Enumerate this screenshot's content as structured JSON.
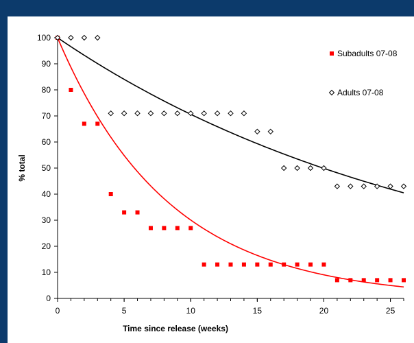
{
  "chart_data": {
    "type": "scatter",
    "title": "",
    "xlabel": "Time since release (weeks)",
    "ylabel": "% total",
    "xlim": [
      0,
      26
    ],
    "ylim": [
      0,
      100
    ],
    "xticks": [
      0,
      5,
      10,
      15,
      20,
      25
    ],
    "yticks": [
      0,
      10,
      20,
      30,
      40,
      50,
      60,
      70,
      80,
      90,
      100
    ],
    "grid": false,
    "legend_position": "top-right",
    "series": [
      {
        "name": "Subadults 07-08",
        "marker": "square",
        "color": "#ff0000",
        "x": [
          0,
          1,
          2,
          3,
          4,
          5,
          6,
          7,
          8,
          9,
          10,
          11,
          12,
          13,
          14,
          15,
          16,
          17,
          18,
          19,
          20,
          21,
          22,
          23,
          24,
          25,
          26
        ],
        "y": [
          100,
          80,
          67,
          67,
          40,
          33,
          33,
          27,
          27,
          27,
          27,
          13,
          13,
          13,
          13,
          13,
          13,
          13,
          13,
          13,
          13,
          7,
          7,
          7,
          7,
          7,
          7
        ]
      },
      {
        "name": "Adults 07-08",
        "marker": "diamond-open",
        "color": "#000000",
        "x": [
          0,
          1,
          2,
          3,
          4,
          5,
          6,
          7,
          8,
          9,
          10,
          11,
          12,
          13,
          14,
          15,
          16,
          17,
          18,
          19,
          20,
          21,
          22,
          23,
          24,
          25,
          26
        ],
        "y": [
          100,
          100,
          100,
          100,
          71,
          71,
          71,
          71,
          71,
          71,
          71,
          71,
          71,
          71,
          71,
          64,
          64,
          50,
          50,
          50,
          50,
          43,
          43,
          43,
          43,
          43,
          43
        ]
      }
    ],
    "trendlines": [
      {
        "series": "Subadults 07-08",
        "type": "exponential",
        "color": "#ff0000",
        "y0": 100,
        "y_end": 4.4,
        "x_end": 26
      },
      {
        "series": "Adults 07-08",
        "type": "exponential",
        "color": "#000000",
        "y0": 100,
        "y_end": 40.5,
        "x_end": 26
      }
    ]
  }
}
